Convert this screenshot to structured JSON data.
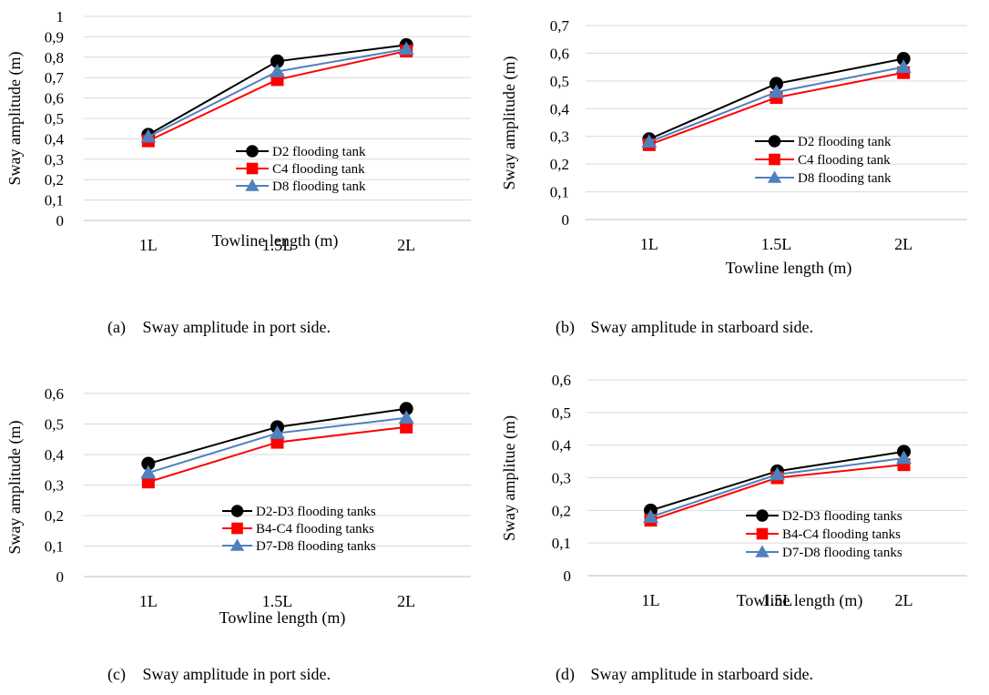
{
  "chart_data": [
    {
      "type": "line",
      "categories": [
        "1L",
        "1.5L",
        "2L"
      ],
      "ylim": [
        0,
        1
      ],
      "ytick_step": 0.1,
      "ytick_labels": [
        "0",
        "0,1",
        "0,2",
        "0,3",
        "0,4",
        "0,5",
        "0,6",
        "0,7",
        "0,8",
        "0,9",
        "1"
      ],
      "xlabel": "Towline length (m)",
      "ylabel": "Sway amplitude (m)",
      "grid": true,
      "legend": "bottom-right",
      "caption_label": "(a)",
      "caption_text": "Sway amplitude in port side.",
      "series": [
        {
          "name": "D2 flooding tank",
          "values": [
            0.42,
            0.78,
            0.86
          ],
          "color": "#000000",
          "marker": "circle"
        },
        {
          "name": "C4 flooding tank",
          "values": [
            0.39,
            0.69,
            0.83
          ],
          "color": "#ff0000",
          "marker": "square"
        },
        {
          "name": "D8 flooding tank",
          "values": [
            0.41,
            0.73,
            0.84
          ],
          "color": "#4f81bd",
          "marker": "triangle"
        }
      ]
    },
    {
      "type": "line",
      "categories": [
        "1L",
        "1.5L",
        "2L"
      ],
      "ylim": [
        0,
        0.7
      ],
      "ytick_step": 0.1,
      "ytick_labels": [
        "0",
        "0,1",
        "0,2",
        "0,3",
        "0,4",
        "0,5",
        "0,6",
        "0,7"
      ],
      "xlabel": "Towline length (m)",
      "ylabel": "Sway amplitude (m)",
      "grid": true,
      "legend": "right",
      "caption_label": "(b)",
      "caption_text": "Sway amplitude in starboard side.",
      "series": [
        {
          "name": "D2 flooding tank",
          "values": [
            0.29,
            0.49,
            0.58
          ],
          "color": "#000000",
          "marker": "circle"
        },
        {
          "name": "C4 flooding tank",
          "values": [
            0.27,
            0.44,
            0.53
          ],
          "color": "#ff0000",
          "marker": "square"
        },
        {
          "name": "D8 flooding tank",
          "values": [
            0.28,
            0.46,
            0.55
          ],
          "color": "#4f81bd",
          "marker": "triangle"
        }
      ]
    },
    {
      "type": "line",
      "categories": [
        "1L",
        "1.5L",
        "2L"
      ],
      "ylim": [
        0,
        0.6
      ],
      "ytick_step": 0.1,
      "ytick_labels": [
        "0",
        "0,1",
        "0,2",
        "0,3",
        "0,4",
        "0,5",
        "0,6"
      ],
      "xlabel": "Towline length (m)",
      "ylabel": "Sway amplitude (m)",
      "grid": true,
      "legend": "bottom-right",
      "caption_label": "(c)",
      "caption_text": "Sway amplitude in port side.",
      "series": [
        {
          "name": "D2-D3 flooding tanks",
          "values": [
            0.37,
            0.49,
            0.55
          ],
          "color": "#000000",
          "marker": "circle"
        },
        {
          "name": "B4-C4 flooding tanks",
          "values": [
            0.31,
            0.44,
            0.49
          ],
          "color": "#ff0000",
          "marker": "square"
        },
        {
          "name": "D7-D8 flooding tanks",
          "values": [
            0.34,
            0.47,
            0.52
          ],
          "color": "#4f81bd",
          "marker": "triangle"
        }
      ]
    },
    {
      "type": "line",
      "categories": [
        "1L",
        "1.5L",
        "2L"
      ],
      "ylim": [
        0,
        0.6
      ],
      "ytick_step": 0.1,
      "ytick_labels": [
        "0",
        "0,1",
        "0,2",
        "0,3",
        "0,4",
        "0,5",
        "0,6"
      ],
      "xlabel": "Towline length (m)",
      "ylabel": "Sway amplitue (m)",
      "grid": true,
      "legend": "bottom-right",
      "caption_label": "(d)",
      "caption_text": "Sway amplitude in starboard side.",
      "series": [
        {
          "name": "D2-D3 flooding tanks",
          "values": [
            0.2,
            0.32,
            0.38
          ],
          "color": "#000000",
          "marker": "circle"
        },
        {
          "name": "B4-C4 flooding tanks",
          "values": [
            0.17,
            0.3,
            0.34
          ],
          "color": "#ff0000",
          "marker": "square"
        },
        {
          "name": "D7-D8 flooding tanks",
          "values": [
            0.18,
            0.31,
            0.36
          ],
          "color": "#4f81bd",
          "marker": "triangle"
        }
      ]
    }
  ]
}
